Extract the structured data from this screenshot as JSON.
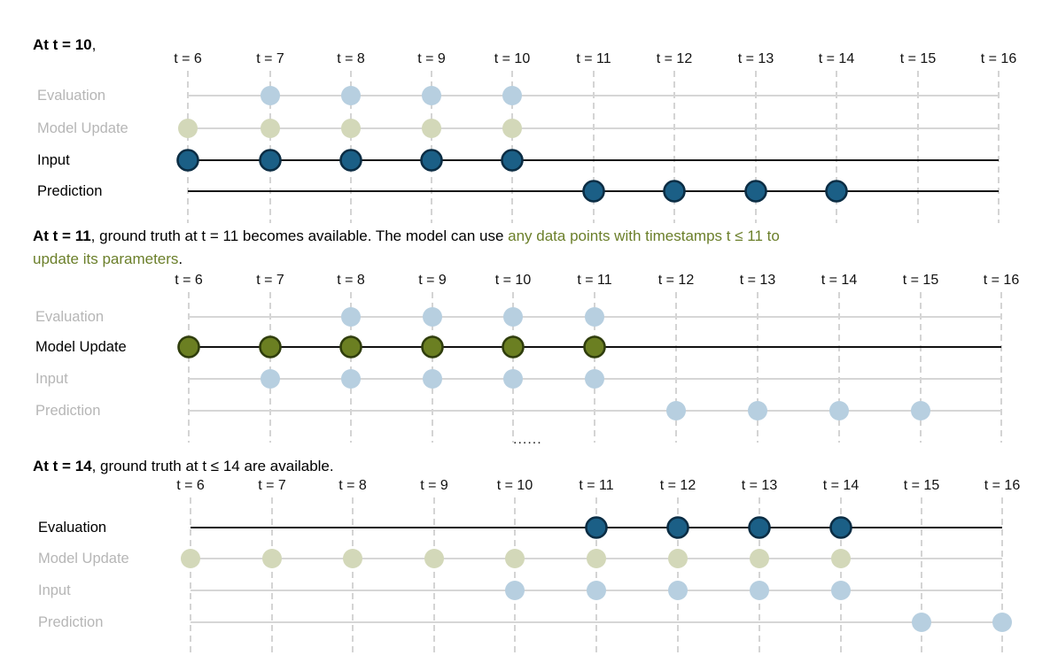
{
  "colors": {
    "dark_blue": "#1b5f86",
    "dark_blue_stroke": "#0b2d44",
    "dark_green": "#6b7f22",
    "dark_green_stroke": "#2f3d0c",
    "light_blue": "#b7cfe0",
    "light_green": "#d3d8b9",
    "faded_label": "#b6b6b6",
    "highlight_text": "#6b7f2a"
  },
  "ellipsis": "......",
  "sections": [
    {
      "id": "t10",
      "heading": {
        "bold": "At t = 10",
        "rest": ",",
        "highlight": "",
        "tail": "",
        "line2": ""
      },
      "ticks": [
        "t = 6",
        "t = 7",
        "t = 8",
        "t = 9",
        "t = 10",
        "t = 11",
        "t = 12",
        "t = 13",
        "t = 14",
        "t = 15",
        "t = 16"
      ],
      "rows": [
        {
          "label": "Evaluation",
          "active": false,
          "points": [
            7,
            8,
            9,
            10
          ],
          "color": "light_blue"
        },
        {
          "label": "Model Update",
          "active": false,
          "points": [
            6,
            7,
            8,
            9,
            10
          ],
          "color": "light_green"
        },
        {
          "label": "Input",
          "active": true,
          "points": [
            6,
            7,
            8,
            9,
            10
          ],
          "color": "dark_blue"
        },
        {
          "label": "Prediction",
          "active": true,
          "points": [
            11,
            12,
            13,
            14
          ],
          "color": "dark_blue"
        }
      ]
    },
    {
      "id": "t11",
      "heading": {
        "bold": "At t = 11",
        "rest": ", ground truth at t = 11 becomes available. The model can use ",
        "highlight": "any data points with timestamps t ≤ 11 to",
        "tail": "",
        "line2": "update its parameters",
        "line2_tail": "."
      },
      "ticks": [
        "t = 6",
        "t = 7",
        "t = 8",
        "t = 9",
        "t = 10",
        "t = 11",
        "t = 12",
        "t = 13",
        "t = 14",
        "t = 15",
        "t = 16"
      ],
      "rows": [
        {
          "label": "Evaluation",
          "active": false,
          "points": [
            8,
            9,
            10,
            11
          ],
          "color": "light_blue"
        },
        {
          "label": "Model Update",
          "active": true,
          "points": [
            6,
            7,
            8,
            9,
            10,
            11
          ],
          "color": "dark_green"
        },
        {
          "label": "Input",
          "active": false,
          "points": [
            7,
            8,
            9,
            10,
            11
          ],
          "color": "light_blue"
        },
        {
          "label": "Prediction",
          "active": false,
          "points": [
            12,
            13,
            14,
            15
          ],
          "color": "light_blue"
        }
      ]
    },
    {
      "id": "t14",
      "heading": {
        "bold": "At t = 14",
        "rest": ", ground truth at t ≤ 14 are available.",
        "highlight": "",
        "tail": "",
        "line2": ""
      },
      "ticks": [
        "t = 6",
        "t = 7",
        "t = 8",
        "t = 9",
        "t = 10",
        "t = 11",
        "t = 12",
        "t = 13",
        "t = 14",
        "t = 15",
        "t = 16"
      ],
      "rows": [
        {
          "label": "Evaluation",
          "active": true,
          "points": [
            11,
            12,
            13,
            14
          ],
          "color": "dark_blue"
        },
        {
          "label": "Model Update",
          "active": false,
          "points": [
            6,
            7,
            8,
            9,
            10,
            11,
            12,
            13,
            14
          ],
          "color": "light_green"
        },
        {
          "label": "Input",
          "active": false,
          "points": [
            10,
            11,
            12,
            13,
            14
          ],
          "color": "light_blue"
        },
        {
          "label": "Prediction",
          "active": false,
          "points": [
            15,
            16
          ],
          "color": "light_blue"
        }
      ]
    }
  ]
}
